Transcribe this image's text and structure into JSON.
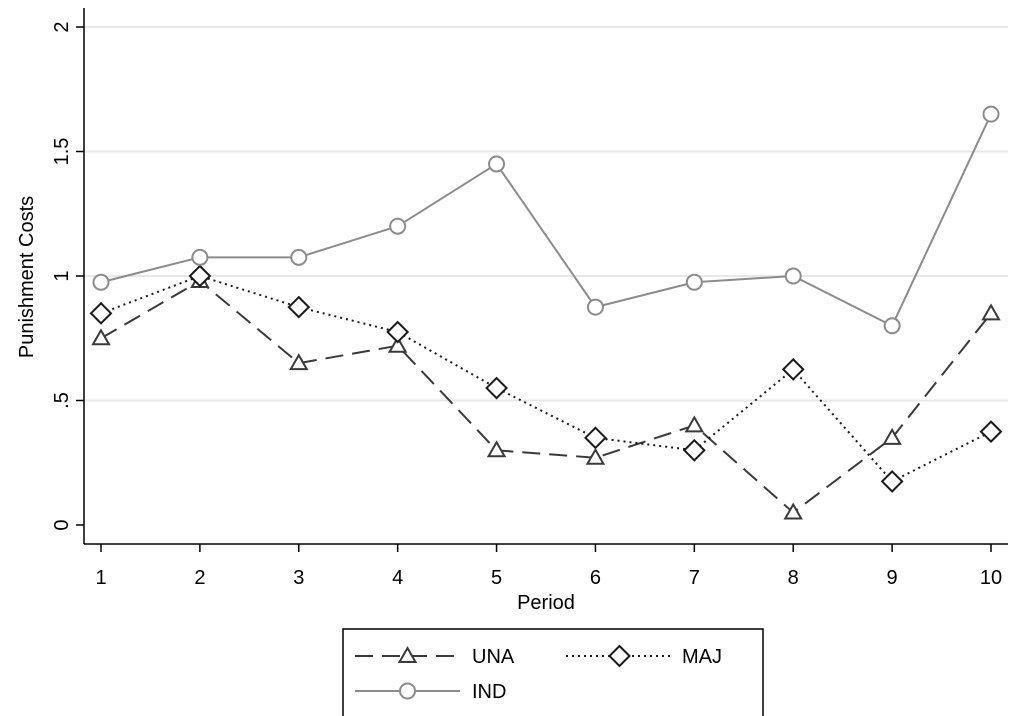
{
  "chart_data": {
    "type": "line",
    "xlabel": "Period",
    "ylabel": "Punishment Costs",
    "x": [
      1,
      2,
      3,
      4,
      5,
      6,
      7,
      8,
      9,
      10
    ],
    "xlim": [
      1,
      10
    ],
    "ylim": [
      0,
      2
    ],
    "xticks": [
      "1",
      "2",
      "3",
      "4",
      "5",
      "6",
      "7",
      "8",
      "9",
      "10"
    ],
    "yticks": [
      {
        "value": 0,
        "label": "0"
      },
      {
        "value": 0.5,
        "label": ".5"
      },
      {
        "value": 1,
        "label": "1"
      },
      {
        "value": 1.5,
        "label": "1.5"
      },
      {
        "value": 2,
        "label": "2"
      }
    ],
    "grid": "horizontal",
    "legend_position": "bottom",
    "series": [
      {
        "name": "UNA",
        "marker": "triangle",
        "line": "dashed",
        "color": "#3a3a3a",
        "values": [
          0.75,
          0.98,
          0.65,
          0.72,
          0.3,
          0.27,
          0.4,
          0.05,
          0.35,
          0.85
        ]
      },
      {
        "name": "MAJ",
        "marker": "diamond",
        "line": "dotted",
        "color": "#1a1a1a",
        "values": [
          0.85,
          1.0,
          0.875,
          0.775,
          0.55,
          0.35,
          0.3,
          0.625,
          0.175,
          0.375
        ]
      },
      {
        "name": "IND",
        "marker": "circle",
        "line": "solid",
        "color": "#8c8c8c",
        "values": [
          0.975,
          1.075,
          1.075,
          1.2,
          1.45,
          0.875,
          0.975,
          1.0,
          0.8,
          1.65
        ]
      }
    ]
  }
}
